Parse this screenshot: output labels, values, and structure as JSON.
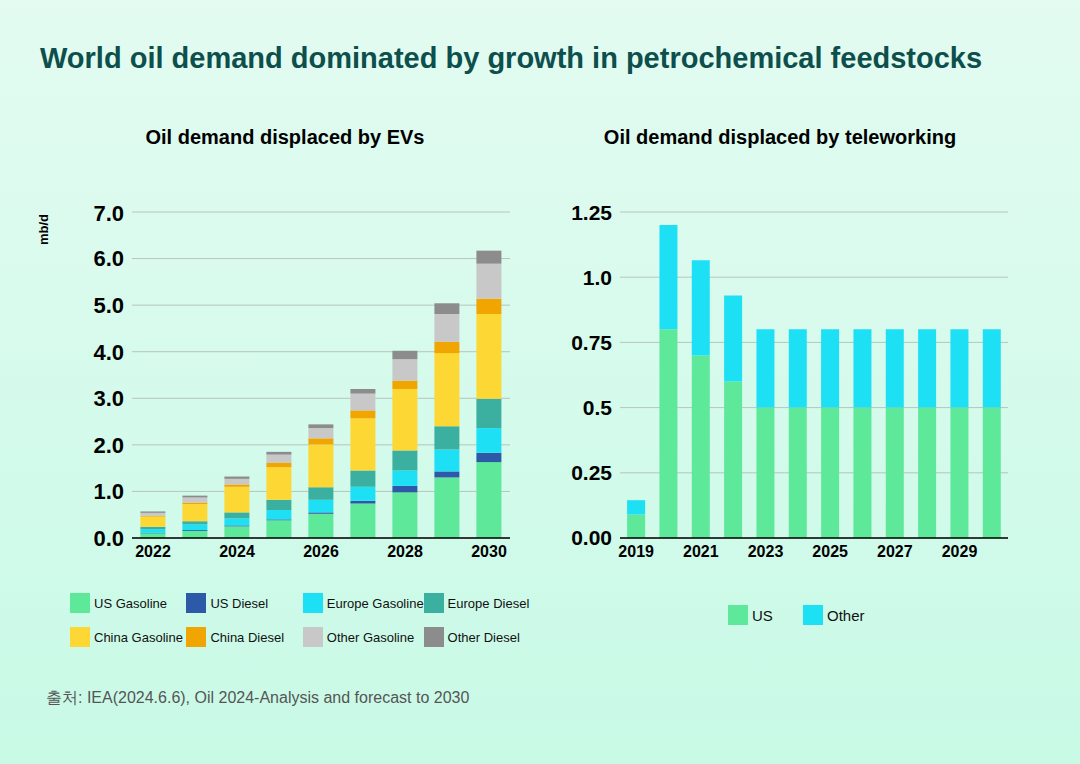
{
  "title": "World oil demand dominated by growth in petrochemical feedstocks",
  "source": "출처: IEA(2024.6.6), Oil 2024-Analysis and forecast to 2030",
  "chart_data": [
    {
      "type": "bar",
      "title": "Oil demand displaced by EVs",
      "y_label": "mb/d",
      "stacked": true,
      "grid": true,
      "categories": [
        "2022",
        null,
        "2024",
        null,
        "2026",
        null,
        "2028",
        null,
        "2030"
      ],
      "ylim": [
        0,
        7
      ],
      "yticks": [
        {
          "value": 0,
          "label": "0.0"
        },
        {
          "value": 1,
          "label": "1.0"
        },
        {
          "value": 2,
          "label": "2.0"
        },
        {
          "value": 3,
          "label": "3.0"
        },
        {
          "value": 4,
          "label": "4.0"
        },
        {
          "value": 5,
          "label": "5.0"
        },
        {
          "value": 6,
          "label": "6.0"
        },
        {
          "value": 7,
          "label": "7.0"
        }
      ],
      "series": [
        {
          "name": "US Gasoline",
          "color": "#5ee89a",
          "values": [
            0.1,
            0.15,
            0.25,
            0.38,
            0.52,
            0.74,
            0.98,
            1.3,
            1.63
          ]
        },
        {
          "name": "US Diesel",
          "color": "#2c5aa8",
          "values": [
            0.01,
            0.02,
            0.02,
            0.02,
            0.03,
            0.06,
            0.14,
            0.13,
            0.2
          ]
        },
        {
          "name": "Europe Gasoline",
          "color": "#1ee0f5",
          "values": [
            0.08,
            0.12,
            0.15,
            0.2,
            0.27,
            0.3,
            0.33,
            0.47,
            0.53
          ]
        },
        {
          "name": "Europe Diesel",
          "color": "#3bb0a0",
          "values": [
            0.05,
            0.07,
            0.13,
            0.22,
            0.27,
            0.35,
            0.43,
            0.5,
            0.63
          ]
        },
        {
          "name": "China Gasoline",
          "color": "#fdd835",
          "values": [
            0.22,
            0.37,
            0.55,
            0.7,
            0.92,
            1.12,
            1.32,
            1.57,
            1.82
          ]
        },
        {
          "name": "China Diesel",
          "color": "#f0a500",
          "values": [
            0.02,
            0.03,
            0.05,
            0.1,
            0.13,
            0.17,
            0.18,
            0.24,
            0.33
          ]
        },
        {
          "name": "Other Gasoline",
          "color": "#c8c8c8",
          "values": [
            0.06,
            0.11,
            0.12,
            0.17,
            0.22,
            0.36,
            0.46,
            0.6,
            0.75
          ]
        },
        {
          "name": "Other Diesel",
          "color": "#8c8c8c",
          "values": [
            0.03,
            0.04,
            0.05,
            0.06,
            0.08,
            0.1,
            0.18,
            0.23,
            0.28
          ]
        }
      ]
    },
    {
      "type": "bar",
      "title": "Oil demand displaced by teleworking",
      "stacked": true,
      "grid": true,
      "categories": [
        "2019",
        null,
        "2021",
        null,
        "2023",
        null,
        "2025",
        null,
        "2027",
        null,
        "2029",
        null
      ],
      "ylim": [
        0,
        1.25
      ],
      "yticks": [
        {
          "value": 0,
          "label": "0.00"
        },
        0.25,
        0.5,
        0.75,
        {
          "value": 1,
          "label": "1.0"
        },
        1.25
      ],
      "series": [
        {
          "name": "US",
          "color": "#5ee89a",
          "values": [
            0.09,
            0.8,
            0.7,
            0.6,
            0.5,
            0.5,
            0.5,
            0.5,
            0.5,
            0.5,
            0.5,
            0.5
          ]
        },
        {
          "name": "Other",
          "color": "#1ee0f5",
          "values": [
            0.055,
            0.4,
            0.365,
            0.33,
            0.3,
            0.3,
            0.3,
            0.3,
            0.3,
            0.3,
            0.3,
            0.3
          ]
        }
      ]
    }
  ]
}
